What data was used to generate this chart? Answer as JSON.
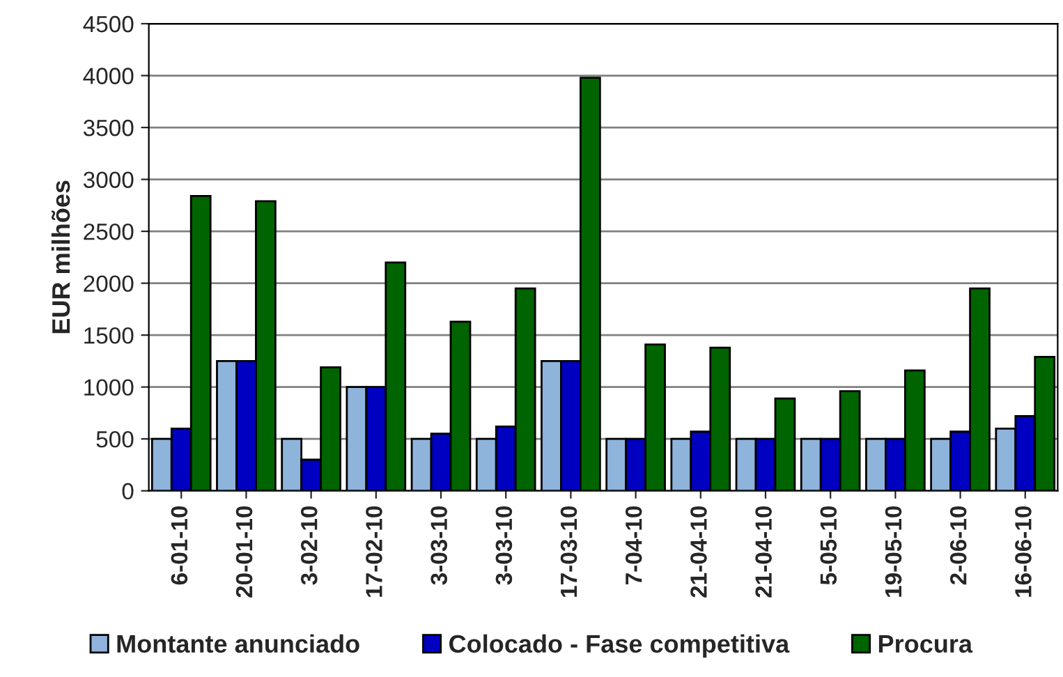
{
  "chart_data": {
    "type": "bar",
    "ylabel": "EUR milhões",
    "categories": [
      "6-01-10",
      "20-01-10",
      "3-02-10",
      "17-02-10",
      "3-03-10",
      "3-03-10",
      "17-03-10",
      "7-04-10",
      "21-04-10",
      "21-04-10",
      "5-05-10",
      "19-05-10",
      "2-06-10",
      "16-06-10"
    ],
    "series": [
      {
        "name": "Montante anunciado",
        "color": "#8fb4dc",
        "values": [
          500,
          1250,
          500,
          1000,
          500,
          500,
          1250,
          500,
          500,
          500,
          500,
          500,
          500,
          600
        ]
      },
      {
        "name": "Colocado - Fase competitiva",
        "color": "#0000c0",
        "values": [
          600,
          1250,
          300,
          1000,
          550,
          620,
          1250,
          500,
          570,
          500,
          500,
          500,
          570,
          720
        ]
      },
      {
        "name": "Procura",
        "color": "#006400",
        "values": [
          2840,
          2790,
          1190,
          2200,
          1630,
          1950,
          3980,
          1410,
          1380,
          890,
          960,
          1160,
          1950,
          1290
        ]
      }
    ],
    "ylim": [
      0,
      4500
    ],
    "yticks": [
      0,
      500,
      1000,
      1500,
      2000,
      2500,
      3000,
      3500,
      4000,
      4500
    ],
    "grid": "y",
    "legend": "bottom"
  }
}
